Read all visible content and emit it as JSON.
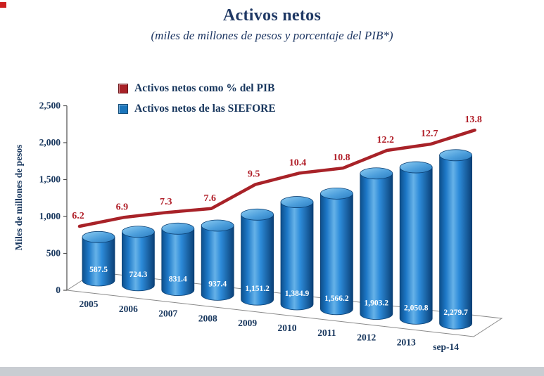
{
  "chart_data": {
    "type": "bar",
    "style": "3d-cylinder-bars-with-line-overlay",
    "title": "Activos netos",
    "subtitle": "(miles de millones de pesos y porcentaje del PIB*)",
    "ylabel": "Miles de millones de pesos",
    "ylim": [
      0,
      2500
    ],
    "y_ticks": [
      0,
      500,
      1000,
      1500,
      2000,
      2500
    ],
    "y_tick_labels": [
      "0",
      "500",
      "1,000",
      "1,500",
      "2,000",
      "2,500"
    ],
    "grid": false,
    "legend_position": "top-left-inside",
    "categories": [
      "2005",
      "2006",
      "2007",
      "2008",
      "2009",
      "2010",
      "2011",
      "2012",
      "2013",
      "sep-14"
    ],
    "series": [
      {
        "name": "Activos netos de las SIEFORE",
        "type": "bar",
        "color": "#1b75bb",
        "values": [
          587.5,
          724.3,
          831.4,
          937.4,
          1151.2,
          1384.9,
          1566.2,
          1903.2,
          2050.8,
          2279.7
        ],
        "labels": [
          "587.5",
          "724.3",
          "831.4",
          "937.4",
          "1,151.2",
          "1,384.9",
          "1,566.2",
          "1,903.2",
          "2,050.8",
          "2,279.7"
        ],
        "label_color": "#ffffff"
      },
      {
        "name": "Activos netos como % del PIB",
        "type": "line",
        "color": "#a82228",
        "values": [
          6.2,
          6.9,
          7.3,
          7.6,
          9.5,
          10.4,
          10.8,
          12.2,
          12.7,
          13.8
        ],
        "labels": [
          "6.2",
          "6.9",
          "7.3",
          "7.6",
          "9.5",
          "10.4",
          "10.8",
          "12.2",
          "12.7",
          "13.8"
        ],
        "label_color": "#b01e28"
      }
    ],
    "text_color": "#17365d",
    "title_color": "#1f3864"
  }
}
